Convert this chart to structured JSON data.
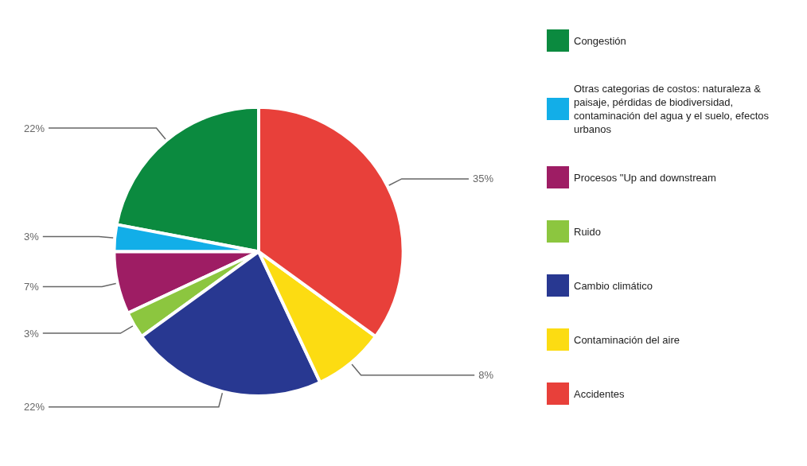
{
  "chart_data": {
    "type": "pie",
    "categories": [
      "Congestión",
      "Otras categorias de costos: naturaleza & paisaje, pérdidas de biodiversidad, contaminación del agua y el suelo, efectos urbanos",
      "Procesos \"Up and downstream",
      "Ruido",
      "Cambio climático",
      "Contaminación del aire",
      "Accidentes"
    ],
    "values": [
      22,
      3,
      7,
      3,
      22,
      8,
      35
    ],
    "colors": [
      "#0b8a3f",
      "#12aee8",
      "#9e1d64",
      "#8cc63f",
      "#283891",
      "#fcdc12",
      "#e8403a"
    ],
    "value_labels": [
      "22%",
      "3%",
      "7%",
      "3%",
      "22%",
      "8%",
      "35%"
    ],
    "legend": "right"
  }
}
